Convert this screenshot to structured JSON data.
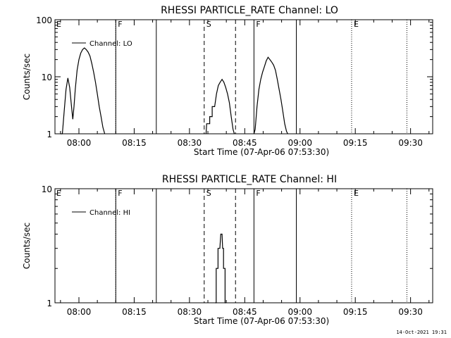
{
  "footer": {
    "timestamp": "14-Oct-2021 19:31"
  },
  "shared": {
    "xlabel": "Start Time (07-Apr-06 07:53:30)",
    "x_range": [
      "07:53:30",
      "09:36:00"
    ],
    "x_ticks": [
      "08:00",
      "08:15",
      "08:30",
      "08:45",
      "09:00",
      "09:15",
      "09:30"
    ],
    "markers": [
      {
        "time": "08:10:00",
        "label": "",
        "style": "dotted"
      },
      {
        "time": "08:10:00",
        "label": "F",
        "style": "solid"
      },
      {
        "time": "08:21:00",
        "label": "",
        "style": "solid"
      },
      {
        "time": "08:34:00",
        "label": "S",
        "style": "dashed"
      },
      {
        "time": "08:42:30",
        "label": "",
        "style": "dashed"
      },
      {
        "time": "08:47:30",
        "label": "F",
        "style": "solid"
      },
      {
        "time": "08:59:00",
        "label": "",
        "style": "solid"
      },
      {
        "time": "09:14:00",
        "label": "E",
        "style": "dotted"
      },
      {
        "time": "09:29:00",
        "label": "",
        "style": "dotted"
      }
    ],
    "left_label": "E",
    "colors": {
      "line": "#000000",
      "background": "#ffffff"
    }
  },
  "chart_data": [
    {
      "type": "line",
      "title": "RHESSI PARTICLE_RATE Channel: LO",
      "ylabel": "Counts/sec",
      "ylim": [
        1,
        100
      ],
      "yscale": "log",
      "y_ticks": [
        "1",
        "10",
        "100"
      ],
      "legend": {
        "entries": [
          "Channel: LO"
        ],
        "position": "top-left"
      },
      "series": [
        {
          "name": "Channel: LO",
          "points": [
            [
              "07:55:00",
              0.5
            ],
            [
              "07:55:30",
              1.0
            ],
            [
              "07:56:00",
              2.5
            ],
            [
              "07:56:30",
              6
            ],
            [
              "07:57:00",
              9.5
            ],
            [
              "07:57:30",
              6.5
            ],
            [
              "07:58:00",
              3.0
            ],
            [
              "07:58:20",
              1.8
            ],
            [
              "07:58:40",
              3.0
            ],
            [
              "07:59:00",
              6
            ],
            [
              "07:59:30",
              13
            ],
            [
              "08:00:00",
              20
            ],
            [
              "08:00:30",
              26
            ],
            [
              "08:01:00",
              30
            ],
            [
              "08:01:30",
              32
            ],
            [
              "08:02:00",
              30
            ],
            [
              "08:02:30",
              27
            ],
            [
              "08:03:00",
              23
            ],
            [
              "08:03:30",
              17
            ],
            [
              "08:04:00",
              12
            ],
            [
              "08:04:30",
              8
            ],
            [
              "08:05:00",
              5
            ],
            [
              "08:05:30",
              3
            ],
            [
              "08:06:00",
              2
            ],
            [
              "08:06:30",
              1.3
            ],
            [
              "08:07:00",
              0.6
            ],
            null,
            [
              "08:34:30",
              0.6
            ],
            [
              "08:34:40",
              1.5
            ],
            [
              "08:35:30",
              1.5
            ],
            [
              "08:35:30",
              2
            ],
            [
              "08:36:10",
              2
            ],
            [
              "08:36:10",
              3
            ],
            [
              "08:36:50",
              3
            ],
            [
              "08:37:20",
              5
            ],
            [
              "08:37:50",
              7
            ],
            [
              "08:38:20",
              8
            ],
            [
              "08:38:50",
              9
            ],
            [
              "08:39:20",
              8
            ],
            [
              "08:39:50",
              6.5
            ],
            [
              "08:40:20",
              5
            ],
            [
              "08:40:50",
              3.5
            ],
            [
              "08:41:20",
              2
            ],
            [
              "08:41:50",
              1.2
            ],
            [
              "08:42:10",
              0.6
            ],
            null,
            [
              "08:47:30",
              0.5
            ],
            [
              "08:47:50",
              1.2
            ],
            [
              "08:48:20",
              3
            ],
            [
              "08:48:50",
              6
            ],
            [
              "08:49:20",
              9
            ],
            [
              "08:49:50",
              12
            ],
            [
              "08:50:20",
              15
            ],
            [
              "08:50:50",
              19
            ],
            [
              "08:51:20",
              22
            ],
            [
              "08:51:50",
              20
            ],
            [
              "08:52:20",
              18
            ],
            [
              "08:52:50",
              16
            ],
            [
              "08:53:20",
              13
            ],
            [
              "08:53:50",
              9
            ],
            [
              "08:54:20",
              6
            ],
            [
              "08:54:50",
              4
            ],
            [
              "08:55:20",
              2.5
            ],
            [
              "08:55:50",
              1.5
            ],
            [
              "08:56:20",
              1.1
            ],
            [
              "08:56:40",
              0.6
            ]
          ]
        }
      ]
    },
    {
      "type": "line",
      "title": "RHESSI PARTICLE_RATE Channel: HI",
      "ylabel": "Counts/sec",
      "ylim": [
        1,
        10
      ],
      "yscale": "log",
      "y_ticks": [
        "1",
        "10"
      ],
      "legend": {
        "entries": [
          "Channel: HI"
        ],
        "position": "top-left"
      },
      "series": [
        {
          "name": "Channel: HI",
          "points": [
            [
              "08:37:00",
              0.9
            ],
            [
              "08:37:15",
              1.0
            ],
            [
              "08:37:15",
              2.0
            ],
            [
              "08:37:45",
              2.0
            ],
            [
              "08:37:45",
              3.0
            ],
            [
              "08:38:15",
              3.0
            ],
            [
              "08:38:30",
              4.0
            ],
            [
              "08:38:50",
              4.0
            ],
            [
              "08:39:00",
              3.0
            ],
            [
              "08:39:15",
              3.0
            ],
            [
              "08:39:15",
              2.0
            ],
            [
              "08:39:40",
              2.0
            ],
            [
              "08:39:40",
              1.0
            ],
            [
              "08:39:55",
              0.9
            ]
          ]
        }
      ]
    }
  ]
}
